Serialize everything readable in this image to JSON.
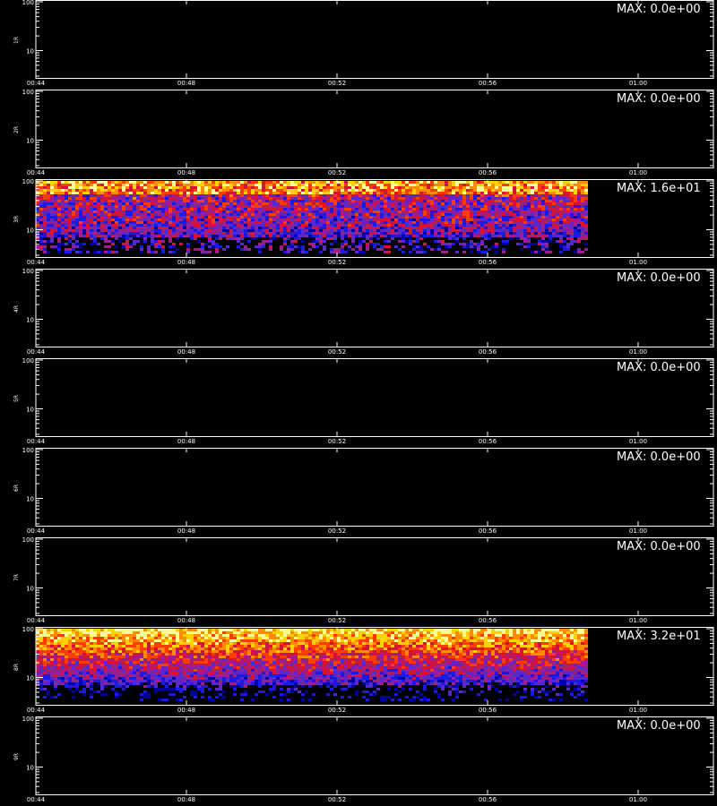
{
  "colors": {
    "background": "#000000",
    "axis": "#ffffff",
    "colormap": [
      "#000030",
      "#0000a0",
      "#1a1ae0",
      "#5a28c8",
      "#9a1e8c",
      "#d2143c",
      "#ff3c00",
      "#ff8c00",
      "#ffd200",
      "#ffff9a"
    ]
  },
  "chart_data": {
    "type": "heatmap",
    "time_ticks": [
      "00:44",
      "00:48",
      "00:52",
      "00:56",
      "01:00"
    ],
    "time_range": [
      "00:44",
      "01:02"
    ],
    "data_end_time": "00:58:40",
    "y_ticks": [
      "100",
      "10"
    ],
    "y_scale": "log",
    "ylim": [
      3,
      100
    ],
    "panels": [
      {
        "label": "1R",
        "max_label": "MAX: 0.0e+00",
        "max": 0
      },
      {
        "label": "2R",
        "max_label": "MAX: 0.0e+00",
        "max": 0
      },
      {
        "label": "3R",
        "max_label": "MAX: 1.6e+01",
        "max": 16
      },
      {
        "label": "4R",
        "max_label": "MAX: 0.0e+00",
        "max": 0
      },
      {
        "label": "5R",
        "max_label": "MAX: 0.0e+00",
        "max": 0
      },
      {
        "label": "6R",
        "max_label": "MAX: 0.0e+00",
        "max": 0
      },
      {
        "label": "7R",
        "max_label": "MAX: 0.0e+00",
        "max": 0
      },
      {
        "label": "8R",
        "max_label": "MAX: 3.2e+01",
        "max": 32
      },
      {
        "label": "9R",
        "max_label": "MAX: 0.0e+00",
        "max": 0
      }
    ]
  }
}
